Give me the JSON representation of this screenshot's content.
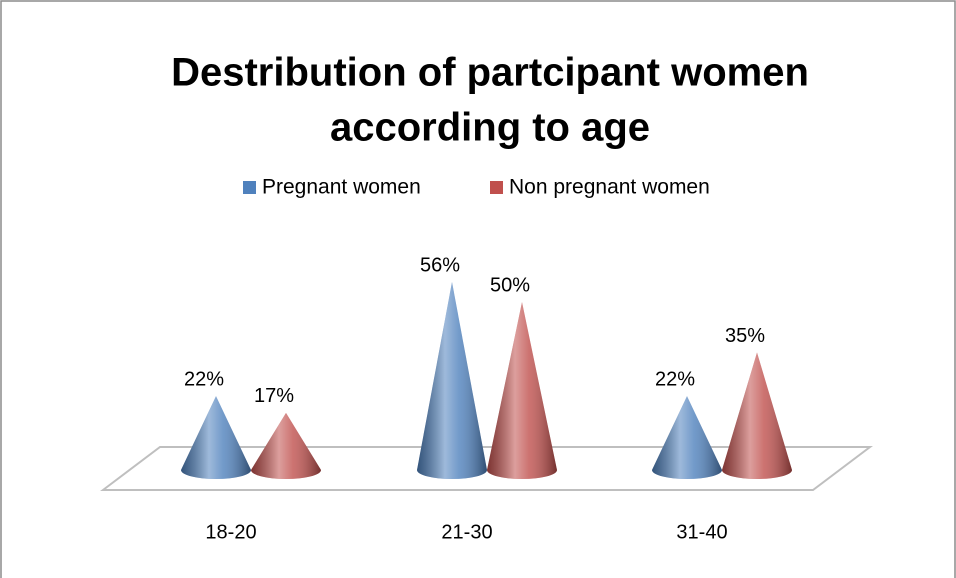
{
  "chart_data": {
    "type": "cone",
    "title": [
      "Destribution of partcipant women",
      "according to age"
    ],
    "categories": [
      "18-20",
      "21-30",
      "31-40"
    ],
    "series": [
      {
        "name": "Pregnant women",
        "color": "#4f81bd",
        "values": [
          22,
          56,
          22
        ],
        "value_labels": [
          "22%",
          "56%",
          "22%"
        ]
      },
      {
        "name": "Non pregnant women",
        "color": "#c0504d",
        "values": [
          17,
          50,
          35
        ],
        "value_labels": [
          "17%",
          "50%",
          "35%"
        ]
      }
    ]
  }
}
